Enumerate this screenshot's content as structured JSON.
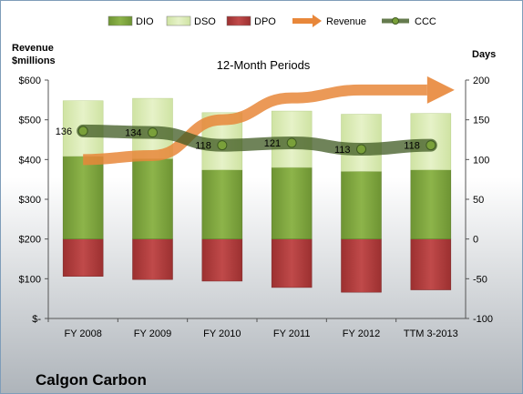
{
  "chart_data": {
    "type": "bar",
    "title": "12-Month Periods",
    "company": "Calgon Carbon",
    "left_axis_label": [
      "Revenue",
      "$millions"
    ],
    "right_axis_label": "Days",
    "categories": [
      "FY 2008",
      "FY 2009",
      "FY 2010",
      "FY 2011",
      "FY 2012",
      "TTM 3-2013"
    ],
    "left_ticks": [
      "$-",
      "$100",
      "$200",
      "$300",
      "$400",
      "$500",
      "$600"
    ],
    "right_ticks": [
      "-100",
      "-50",
      "0",
      "50",
      "100",
      "150",
      "200"
    ],
    "left_ylim": [
      0,
      600
    ],
    "right_ylim": [
      -100,
      200
    ],
    "legend": [
      {
        "name": "DIO",
        "kind": "bar",
        "color": "#7aa03a"
      },
      {
        "name": "DSO",
        "kind": "bar",
        "color": "#d9ebb0"
      },
      {
        "name": "DPO",
        "kind": "bar",
        "color": "#b03a3a"
      },
      {
        "name": "Revenue",
        "kind": "arrow",
        "color": "#e8873a"
      },
      {
        "name": "CCC",
        "kind": "line",
        "color": "#4e6b2a"
      }
    ],
    "legend_position": "top",
    "series": [
      {
        "name": "DIO",
        "axis": "right",
        "values": [
          104,
          101,
          87,
          90,
          85,
          87
        ]
      },
      {
        "name": "DSO",
        "axis": "right",
        "values": [
          70,
          76,
          72,
          71,
          72,
          71
        ]
      },
      {
        "name": "DPO",
        "axis": "right",
        "values": [
          -47,
          -51,
          -53,
          -61,
          -67,
          -64
        ]
      },
      {
        "name": "Revenue",
        "axis": "left",
        "values": [
          400,
          410,
          500,
          555,
          575,
          575
        ]
      },
      {
        "name": "CCC",
        "axis": "right",
        "values": [
          136,
          134,
          118,
          121,
          113,
          118
        ]
      }
    ],
    "ccc_labels": [
      "136",
      "134",
      "118",
      "121",
      "113",
      "118"
    ]
  }
}
